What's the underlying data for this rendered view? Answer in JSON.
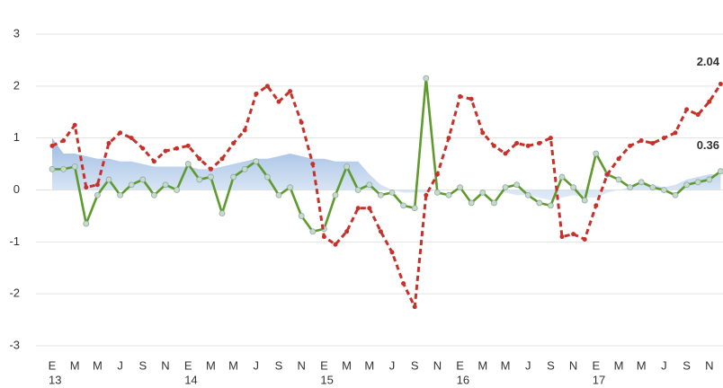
{
  "chart_data": {
    "type": "line",
    "categories": [
      "E",
      null,
      "M",
      null,
      "M",
      null,
      "J",
      null,
      "S",
      null,
      "N",
      null,
      "E",
      null,
      "M",
      null,
      "M",
      null,
      "J",
      null,
      "S",
      null,
      "N",
      null,
      "E",
      null,
      "M",
      null,
      "M",
      null,
      "J",
      null,
      "S",
      null,
      "N",
      null,
      "E",
      null,
      "M",
      null,
      "M",
      null,
      "J",
      null,
      "S",
      null,
      "N",
      null,
      "E",
      null,
      "M",
      null,
      "M",
      null,
      "J",
      null,
      "S",
      null,
      "N",
      null
    ],
    "year_labels": [
      "13",
      "14",
      "15",
      "16",
      "17"
    ],
    "ylim": [
      -3,
      3
    ],
    "yticks": [
      -3,
      -2,
      -1,
      0,
      1,
      2,
      3
    ],
    "grid": true,
    "series": [
      {
        "kind": "area",
        "color": "#a9c4e6",
        "values": [
          1.0,
          0.7,
          0.7,
          0.65,
          0.6,
          0.6,
          0.55,
          0.55,
          0.5,
          0.45,
          0.45,
          0.45,
          0.45,
          0.4,
          0.4,
          0.45,
          0.5,
          0.55,
          0.6,
          0.6,
          0.65,
          0.7,
          0.65,
          0.6,
          0.6,
          0.55,
          0.55,
          0.55,
          0.3,
          0.1,
          0.0,
          -0.05,
          -0.05,
          -0.05,
          0.0,
          0.0,
          0.0,
          0.0,
          0.0,
          0.0,
          -0.05,
          -0.1,
          -0.1,
          -0.15,
          -0.2,
          -0.15,
          -0.1,
          -0.15,
          -0.15,
          -0.05,
          0.0,
          0.05,
          0.1,
          0.1,
          0.05,
          0.1,
          0.2,
          0.25,
          0.3,
          0.3
        ]
      },
      {
        "kind": "solid",
        "color": "#5e9a2c",
        "values": [
          0.4,
          0.4,
          0.45,
          -0.65,
          -0.1,
          0.2,
          -0.1,
          0.1,
          0.2,
          -0.1,
          0.1,
          0.0,
          0.5,
          0.2,
          0.25,
          -0.45,
          0.25,
          0.4,
          0.55,
          0.25,
          -0.1,
          0.05,
          -0.5,
          -0.8,
          -0.75,
          -0.1,
          0.45,
          0.0,
          0.1,
          -0.1,
          -0.05,
          -0.3,
          -0.35,
          2.15,
          -0.05,
          -0.1,
          0.05,
          -0.25,
          -0.05,
          -0.25,
          0.05,
          0.1,
          -0.1,
          -0.25,
          -0.3,
          0.25,
          0.05,
          -0.2,
          0.7,
          0.3,
          0.2,
          0.05,
          0.15,
          0.05,
          0.0,
          -0.1,
          0.1,
          0.15,
          0.2,
          0.36
        ]
      },
      {
        "kind": "dashed",
        "color": "#c8302a",
        "values": [
          0.85,
          0.95,
          1.25,
          0.05,
          0.1,
          0.9,
          1.1,
          1.0,
          0.8,
          0.55,
          0.75,
          0.8,
          0.85,
          0.6,
          0.4,
          0.6,
          0.9,
          1.15,
          1.85,
          2.0,
          1.7,
          1.9,
          1.3,
          0.5,
          -0.9,
          -1.05,
          -0.8,
          -0.35,
          -0.35,
          -0.8,
          -1.2,
          -1.8,
          -2.25,
          -0.1,
          0.3,
          1.0,
          1.8,
          1.75,
          1.1,
          0.85,
          0.7,
          0.9,
          0.85,
          0.9,
          1.0,
          -0.9,
          -0.85,
          -0.95,
          -0.3,
          0.3,
          0.6,
          0.85,
          0.95,
          0.9,
          1.0,
          1.1,
          1.55,
          1.45,
          1.7,
          2.04
        ]
      }
    ],
    "annotations": [
      {
        "text": "2.04",
        "series": 2
      },
      {
        "text": "0.36",
        "series": 1
      }
    ]
  }
}
